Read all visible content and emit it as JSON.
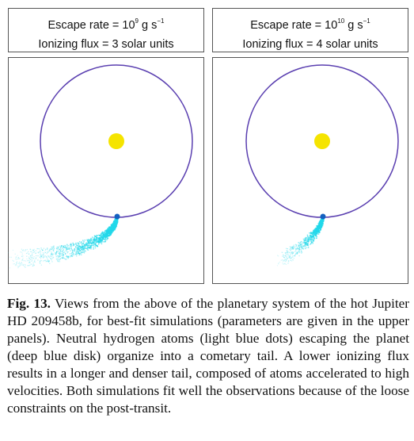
{
  "panels": [
    {
      "escape_rate": {
        "text": "Escape rate = 10",
        "exponent": "9",
        "unit": " g s",
        "unit_exponent": "−1"
      },
      "flux": "Ionizing flux = 3 solar units"
    },
    {
      "escape_rate": {
        "text": "Escape rate = 10",
        "exponent": "10",
        "unit": " g s",
        "unit_exponent": "−1"
      },
      "flux": "Ionizing flux = 4 solar units"
    }
  ],
  "caption": {
    "label": "Fig. 13.",
    "text": "Views from the above of the planetary system of the hot Jupiter HD 209458b, for best-fit simulations (parameters are given in the upper panels). Neutral hydrogen atoms (light blue dots) escaping the planet (deep blue disk) organize into a cometary tail. A lower ionizing flux results in a longer and denser tail, composed of atoms accelerated to high velocities. Both simulations fit well the observations because of the loose constraints on the post-transit."
  }
}
